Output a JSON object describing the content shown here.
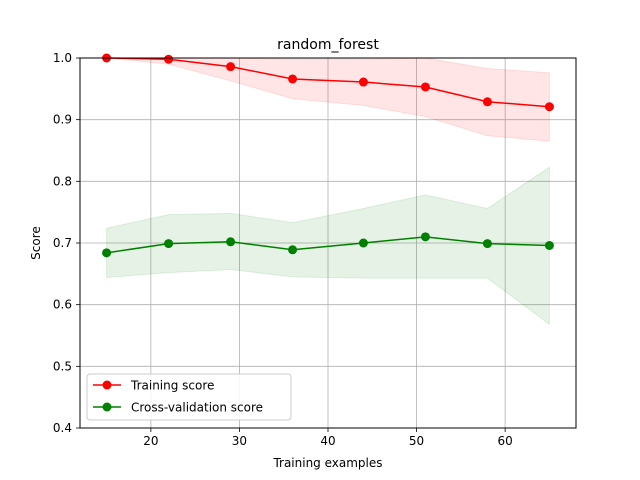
{
  "chart_data": {
    "type": "line",
    "title": "random_forest",
    "xlabel": "Training examples",
    "ylabel": "Score",
    "xlim": [
      12,
      68
    ],
    "ylim": [
      0.4,
      1.0
    ],
    "x_ticks": [
      20,
      30,
      40,
      50,
      60
    ],
    "y_ticks": [
      0.4,
      0.5,
      0.6,
      0.7,
      0.8,
      0.9,
      1.0
    ],
    "x_tick_labels": [
      "20",
      "30",
      "40",
      "50",
      "60"
    ],
    "y_tick_labels": [
      "0.4",
      "0.5",
      "0.6",
      "0.7",
      "0.8",
      "0.9",
      "1.0"
    ],
    "grid": true,
    "legend_position": "lower-left",
    "x": [
      15,
      22,
      29,
      36,
      44,
      51,
      58,
      65
    ],
    "series": [
      {
        "name": "Training score",
        "color": "#ff0000",
        "values": [
          1.0,
          0.998,
          0.986,
          0.966,
          0.961,
          0.953,
          0.929,
          0.921
        ],
        "band_upper": [
          1.0,
          1.0,
          1.0,
          0.998,
          0.998,
          1.0,
          0.983,
          0.976
        ],
        "band_lower": [
          1.0,
          0.99,
          0.963,
          0.934,
          0.923,
          0.905,
          0.874,
          0.865
        ]
      },
      {
        "name": "Cross-validation score",
        "color": "#008000",
        "values": [
          0.684,
          0.699,
          0.702,
          0.689,
          0.7,
          0.71,
          0.699,
          0.696
        ],
        "band_upper": [
          0.724,
          0.746,
          0.748,
          0.733,
          0.756,
          0.778,
          0.756,
          0.823
        ],
        "band_lower": [
          0.644,
          0.652,
          0.657,
          0.645,
          0.643,
          0.643,
          0.643,
          0.568
        ]
      }
    ]
  }
}
